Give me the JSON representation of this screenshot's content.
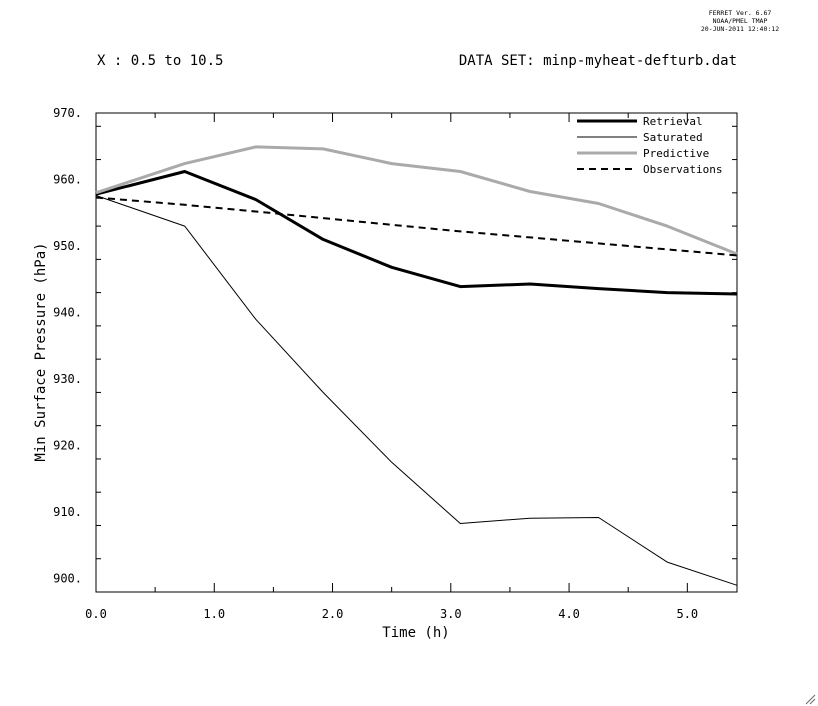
{
  "header": {
    "ferret_version": "FERRET Ver. 6.67",
    "ferret_org": "NOAA/PMEL TMAP",
    "ferret_timestamp": "20-JUN-2011 12:40:12",
    "x_range_label": "X : 0.5 to 10.5",
    "dataset_label": "DATA SET: minp-myheat-defturb.dat"
  },
  "chart_data": {
    "type": "line",
    "xlabel": "Time (h)",
    "ylabel": "Min Surface Pressure (hPa)",
    "xlim": [
      0,
      5.42
    ],
    "ylim": [
      898,
      970
    ],
    "x_ticks": [
      0,
      1,
      2,
      3,
      4,
      5
    ],
    "x_tick_labels": [
      "0.0",
      "1.0",
      "2.0",
      "3.0",
      "4.0",
      "5.0"
    ],
    "y_ticks": [
      900,
      910,
      920,
      930,
      940,
      950,
      960,
      970
    ],
    "y_tick_labels": [
      "900.",
      "910.",
      "920.",
      "930.",
      "940.",
      "950.",
      "960.",
      "970."
    ],
    "legend_position": "top-right",
    "series": [
      {
        "name": "Retrieval",
        "color": "#000000",
        "style": "thick",
        "x": [
          0,
          0.75,
          1.35,
          1.92,
          2.5,
          3.08,
          3.67,
          4.25,
          4.83,
          5.42
        ],
        "y": [
          957.8,
          961.2,
          957.0,
          951.0,
          946.8,
          943.9,
          944.3,
          943.6,
          943.0,
          942.8
        ]
      },
      {
        "name": "Saturated",
        "color": "#000000",
        "style": "thin",
        "x": [
          0,
          0.75,
          1.35,
          1.92,
          2.5,
          3.08,
          3.67,
          4.25,
          4.83,
          5.42
        ],
        "y": [
          957.6,
          953.0,
          939.0,
          928.0,
          917.5,
          908.3,
          909.1,
          909.2,
          902.5,
          899.0
        ]
      },
      {
        "name": "Predictive",
        "color": "#aaaaaa",
        "style": "thick",
        "x": [
          0,
          0.75,
          1.35,
          1.92,
          2.5,
          3.08,
          3.67,
          4.25,
          4.83,
          5.42
        ],
        "y": [
          958.0,
          962.4,
          964.9,
          964.6,
          962.4,
          961.2,
          958.2,
          956.4,
          953.0,
          948.8
        ]
      },
      {
        "name": "Observations",
        "color": "#000000",
        "style": "dashed",
        "x": [
          0,
          0.75,
          1.35,
          1.92,
          2.5,
          3.08,
          3.67,
          4.25,
          4.83,
          5.42
        ],
        "y": [
          957.3,
          956.2,
          955.2,
          954.2,
          953.2,
          952.2,
          951.3,
          950.4,
          949.5,
          948.6
        ]
      }
    ]
  }
}
